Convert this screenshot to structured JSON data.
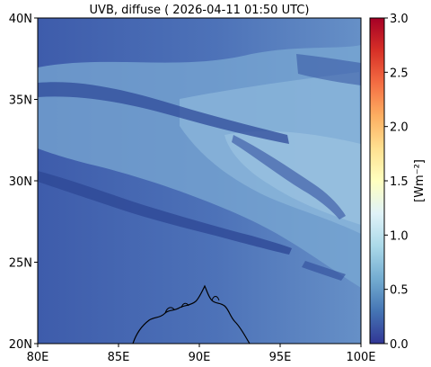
{
  "title": "UVB, diffuse ( 2026-04-11 01:50 UTC)",
  "map": {
    "lon_range": [
      80,
      100
    ],
    "lat_range": [
      20,
      40
    ],
    "x_ticks": [
      "80E",
      "85E",
      "90E",
      "95E",
      "100E"
    ],
    "y_ticks": [
      "20N",
      "25N",
      "30N",
      "35N",
      "40N"
    ],
    "background_value": 0.5,
    "colormap": "RdYlBu_r"
  },
  "colorbar": {
    "label": "[Wm⁻²]",
    "range": [
      0.0,
      3.0
    ],
    "ticks": [
      "0.0",
      "0.5",
      "1.0",
      "1.5",
      "2.0",
      "2.5",
      "3.0"
    ],
    "colors": [
      "#313695",
      "#4575b4",
      "#74add1",
      "#abd9e9",
      "#e0f3f8",
      "#ffffbf",
      "#fee090",
      "#fdae61",
      "#f46d43",
      "#d73027",
      "#a50026"
    ]
  },
  "coastline_color": "#000000"
}
